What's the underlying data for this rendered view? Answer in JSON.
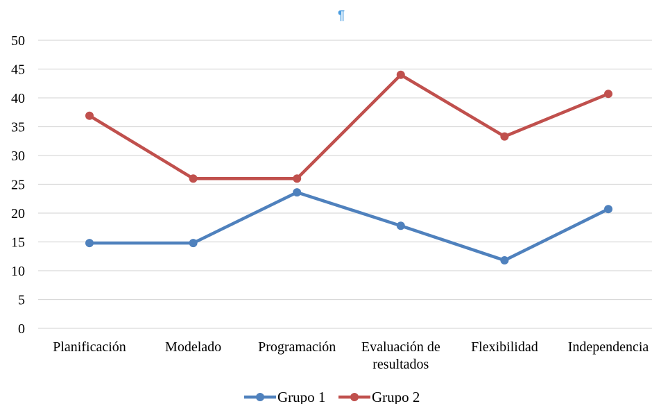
{
  "chart_data": {
    "type": "line",
    "title": "",
    "xlabel": "",
    "ylabel": "",
    "categories": [
      [
        "Planificación"
      ],
      [
        "Modelado"
      ],
      [
        "Programación"
      ],
      [
        "Evaluación de",
        "resultados"
      ],
      [
        "Flexibilidad"
      ],
      [
        "Independencia"
      ]
    ],
    "series": [
      {
        "name": "Grupo 1",
        "values": [
          14.8,
          14.8,
          23.6,
          17.8,
          11.8,
          20.7
        ],
        "color": "#4f81bd"
      },
      {
        "name": "Grupo 2",
        "values": [
          36.9,
          26.0,
          26.0,
          44.0,
          33.3,
          40.7
        ],
        "color": "#c0504d"
      }
    ],
    "ylim": [
      0,
      50
    ],
    "yticks": [
      0,
      5,
      10,
      15,
      20,
      25,
      30,
      35,
      40,
      45,
      50
    ],
    "grid": true,
    "legend_position": "bottom-center"
  },
  "pilcrow_mark": "¶",
  "pilcrow_color": "#4a9de0"
}
